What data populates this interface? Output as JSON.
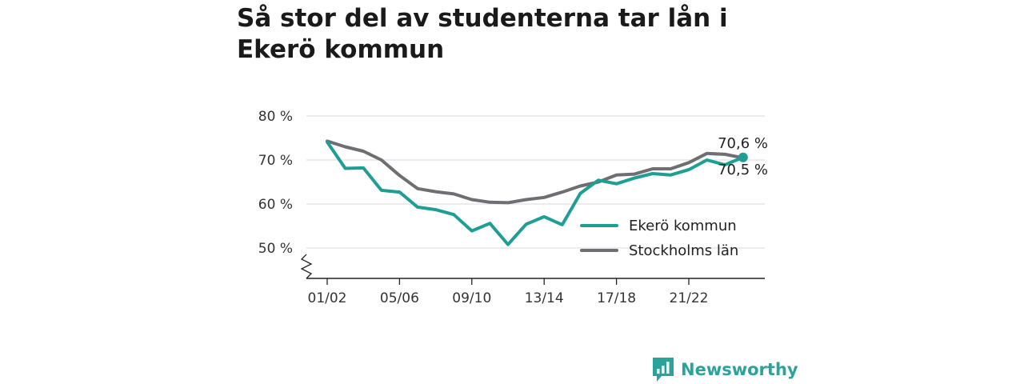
{
  "chart_data": {
    "type": "line",
    "title": "Så stor del av studenterna tar lån i Ekerö kommun",
    "y_ticks": [
      50,
      60,
      70,
      80
    ],
    "y_tick_labels": [
      "50 %",
      "60 %",
      "70 %",
      "80 %"
    ],
    "ylim": [
      44,
      80
    ],
    "x": [
      "01/02",
      "02/03",
      "03/04",
      "04/05",
      "05/06",
      "06/07",
      "07/08",
      "08/09",
      "09/10",
      "10/11",
      "11/12",
      "12/13",
      "13/14",
      "14/15",
      "15/16",
      "16/17",
      "17/18",
      "18/19",
      "19/20",
      "20/21",
      "21/22",
      "22/23",
      "23/24",
      "24/25"
    ],
    "x_tick_labels": [
      "01/02",
      "05/06",
      "09/10",
      "13/14",
      "17/18",
      "21/22"
    ],
    "grid": true,
    "legend_position": "bottom-right",
    "series": [
      {
        "name": "Ekerö kommun",
        "color": "#1f9e93",
        "values": [
          74.1,
          68.1,
          68.2,
          63.1,
          62.7,
          59.3,
          58.7,
          57.6,
          53.9,
          55.6,
          50.8,
          55.4,
          57.1,
          55.3,
          62.4,
          65.4,
          64.6,
          65.9,
          66.9,
          66.6,
          67.8,
          70.0,
          68.9,
          70.6
        ],
        "end_label": "70,6 %"
      },
      {
        "name": "Stockholms län",
        "color": "#6e6e73",
        "values": [
          74.3,
          73.0,
          72.0,
          70.0,
          66.5,
          63.5,
          62.8,
          62.3,
          61.0,
          60.4,
          60.3,
          61.0,
          61.5,
          62.7,
          64.1,
          65.0,
          66.6,
          66.8,
          68.0,
          68.0,
          69.4,
          71.5,
          71.3,
          70.5
        ],
        "end_label": "70,5 %"
      }
    ]
  },
  "brand": {
    "name": "Newsworthy",
    "icon": "bar-chart-speech-bubble-icon",
    "color": "#2aa39a"
  }
}
